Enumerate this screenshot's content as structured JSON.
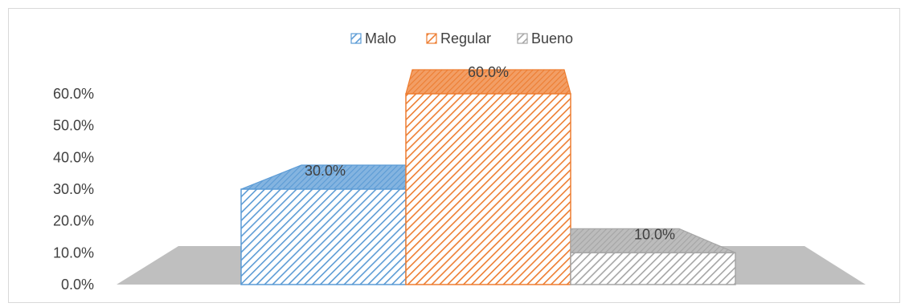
{
  "chart_data": {
    "type": "bar",
    "style": "3d-clustered",
    "categories": [
      ""
    ],
    "series": [
      {
        "name": "Malo",
        "values": [
          30.0
        ],
        "label": "30.0%",
        "color": "#5b9bd5",
        "pattern": "diagonal-hatch"
      },
      {
        "name": "Regular",
        "values": [
          60.0
        ],
        "label": "60.0%",
        "color": "#ed7d31",
        "pattern": "diagonal-hatch"
      },
      {
        "name": "Bueno",
        "values": [
          10.0
        ],
        "label": "10.0%",
        "color": "#a5a5a5",
        "pattern": "diagonal-hatch"
      }
    ],
    "yticks": [
      "0.0%",
      "10.0%",
      "20.0%",
      "30.0%",
      "40.0%",
      "50.0%",
      "60.0%"
    ],
    "ylim": [
      0,
      60
    ],
    "legend_position": "top",
    "grid": false,
    "floor_color": "#bfbfbf"
  }
}
